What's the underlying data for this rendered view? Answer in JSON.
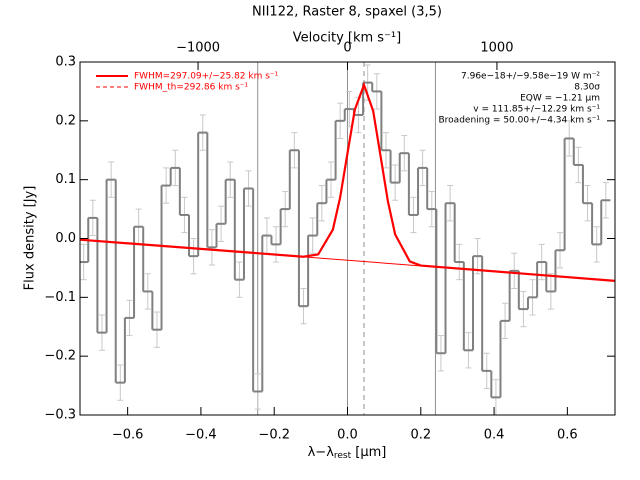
{
  "chart_data": {
    "type": "step",
    "title": "NII122, Raster 8, spaxel (3,5)",
    "xlabel": "λ−λ",
    "xlabel_sub": "rest",
    "xlabel_unit": " [μm]",
    "ylabel": "Flux density [Jy]",
    "x2label": "Velocity [km s⁻¹]",
    "xlim": [
      -0.73,
      0.73
    ],
    "ylim": [
      -0.3,
      0.3
    ],
    "x2lim": [
      -1790,
      1790
    ],
    "xticks": [
      {
        "value": -0.6,
        "label": "−0.6"
      },
      {
        "value": -0.4,
        "label": "−0.4"
      },
      {
        "value": -0.2,
        "label": "−0.2"
      },
      {
        "value": 0,
        "label": "0.0"
      },
      {
        "value": 0.2,
        "label": "0.2"
      },
      {
        "value": 0.4,
        "label": "0.4"
      },
      {
        "value": 0.6,
        "label": "0.6"
      }
    ],
    "yticks": [
      {
        "value": -0.3,
        "label": "−0.3"
      },
      {
        "value": -0.2,
        "label": "−0.2"
      },
      {
        "value": -0.1,
        "label": "−0.1"
      },
      {
        "value": 0,
        "label": "0.0"
      },
      0.1,
      0.2,
      0.3
    ],
    "x2ticks": [
      {
        "value": -1000,
        "label": "−1000"
      },
      0,
      1000
    ],
    "error": 0.03,
    "vlines": [
      -0.245,
      0,
      0.24
    ],
    "center_line": 0.045,
    "series": [
      {
        "color": "#808080",
        "x": [
          -0.72,
          -0.695,
          -0.67,
          -0.645,
          -0.62,
          -0.595,
          -0.57,
          -0.545,
          -0.52,
          -0.495,
          -0.47,
          -0.445,
          -0.42,
          -0.395,
          -0.37,
          -0.345,
          -0.32,
          -0.295,
          -0.27,
          -0.245,
          -0.22,
          -0.195,
          -0.17,
          -0.145,
          -0.12,
          -0.095,
          -0.07,
          -0.045,
          -0.02,
          0.005,
          0.03,
          0.055,
          0.08,
          0.105,
          0.13,
          0.155,
          0.18,
          0.205,
          0.23,
          0.255,
          0.28,
          0.305,
          0.33,
          0.355,
          0.38,
          0.405,
          0.43,
          0.455,
          0.48,
          0.505,
          0.53,
          0.555,
          0.58,
          0.605,
          0.63,
          0.655,
          0.68,
          0.705
        ],
        "values": [
          -0.04,
          0.035,
          -0.16,
          0.1,
          -0.245,
          -0.135,
          0.02,
          -0.09,
          -0.155,
          0.09,
          0.12,
          0.04,
          -0.03,
          0.18,
          -0.015,
          0.025,
          0.1,
          -0.07,
          0.085,
          -0.26,
          0.005,
          -0.01,
          0.05,
          0.15,
          -0.115,
          0.005,
          0.06,
          0.1,
          0.2,
          0.22,
          0.21,
          0.265,
          0.25,
          0.15,
          0.095,
          0.145,
          0.04,
          0.12,
          0.05,
          -0.195,
          0.06,
          -0.04,
          -0.19,
          -0.03,
          -0.225,
          -0.27,
          -0.14,
          -0.055,
          -0.12,
          -0.1,
          -0.04,
          -0.09,
          -0.02,
          0.17,
          0.125,
          0.06,
          -0.01,
          0.065
        ]
      },
      {
        "color": "#ff0000",
        "x": [
          -0.73,
          -0.12,
          -0.08,
          -0.04,
          -0.02,
          0,
          0.02,
          0.045,
          0.07,
          0.09,
          0.11,
          0.13,
          0.17,
          0.2,
          0.73
        ],
        "values": [
          -0.002,
          -0.031,
          -0.027,
          0.015,
          0.07,
          0.145,
          0.219,
          0.261,
          0.217,
          0.141,
          0.064,
          0.007,
          -0.039,
          -0.046,
          -0.072
        ]
      },
      {
        "color": "#ff0000",
        "x": [
          -0.73,
          0.73
        ],
        "values": [
          -0.002,
          -0.072
        ]
      }
    ],
    "legend": [
      "FWHM=297.09+/−25.82 km s⁻¹",
      "FWHM_th=292.86 km s⁻¹"
    ],
    "annotations": [
      "7.96e−18+/−9.58e−19 W m⁻²",
      "8.30σ",
      "EQW = −1.21 μm",
      "v = 111.85+/−12.29 km s⁻¹",
      "Broadening = 50.00+/−4.34 km s⁻¹"
    ]
  }
}
